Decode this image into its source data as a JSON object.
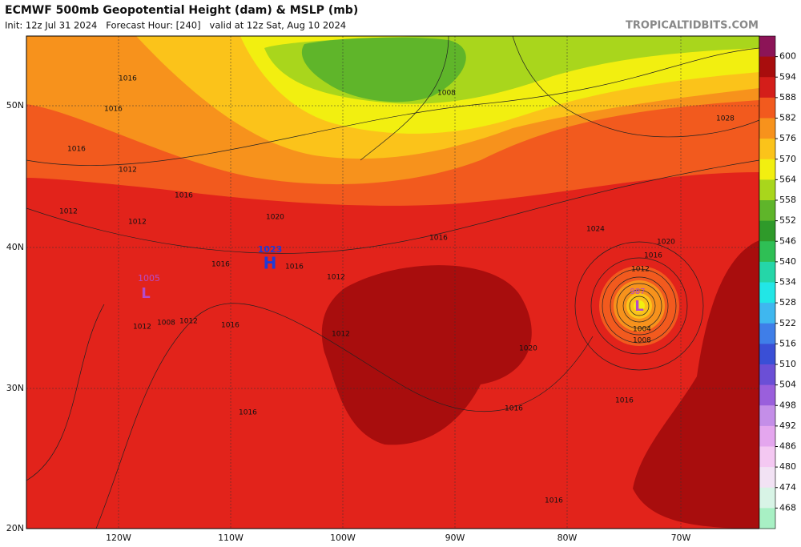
{
  "header": {
    "title": "ECMWF 500mb Geopotential Height (dam) & MSLP (mb)",
    "subtitle": "Init: 12z Jul 31 2024   Forecast Hour: [240]   valid at 12z Sat, Aug 10 2024",
    "site": "TROPICALTIDBITS.COM"
  },
  "colorbar": {
    "ticks": [
      600,
      594,
      588,
      582,
      576,
      570,
      564,
      558,
      552,
      546,
      540,
      534,
      528,
      522,
      516,
      510,
      504,
      498,
      492,
      486,
      480,
      474,
      468
    ],
    "colors": [
      "#8c1457",
      "#a80d0d",
      "#d41e1a",
      "#f25a1e",
      "#f7921c",
      "#fbc31a",
      "#f2ef10",
      "#a9d61c",
      "#5fb52a",
      "#2f9a2a",
      "#2fbf55",
      "#25d6a8",
      "#22e6e6",
      "#3fb7ef",
      "#3f7ee8",
      "#3a4fd6",
      "#6b4fd6",
      "#9a5fdc",
      "#c48ee8",
      "#e4a6ee",
      "#f4c8f2",
      "#f2e2f4",
      "#d8f4e6",
      "#a8f0c4"
    ]
  },
  "axes": {
    "lon": [
      "120W",
      "110W",
      "100W",
      "90W",
      "80W",
      "70W"
    ],
    "lat": [
      "50N",
      "40N",
      "30N",
      "20N"
    ]
  },
  "contours": [
    "1016",
    "1016",
    "1016",
    "1012",
    "1016",
    "1012",
    "1012",
    "1016",
    "1020",
    "1016",
    "1012",
    "1008",
    "1012",
    "1008",
    "1016",
    "1012",
    "1012",
    "1016",
    "1016",
    "1024",
    "1020",
    "1016",
    "1012",
    "1004",
    "1008",
    "1020",
    "1016",
    "1016",
    "1028",
    "1016"
  ],
  "centers": [
    {
      "letter": "H",
      "value": "1023"
    },
    {
      "letter": "L",
      "value": "1005"
    },
    {
      "letter": "L",
      "value": "987"
    }
  ]
}
